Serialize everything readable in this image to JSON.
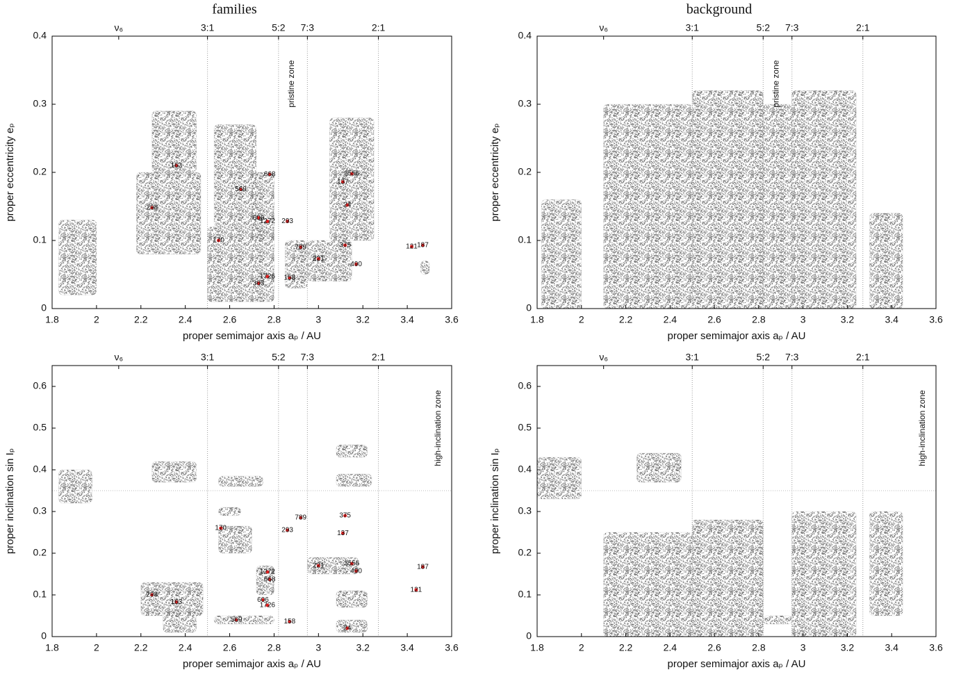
{
  "chart_data": [
    {
      "type": "scatter",
      "title": "families",
      "xlabel": "proper semimajor axis aₚ / AU",
      "ylabel": "proper eccentricity eₚ",
      "xlim": [
        1.8,
        3.6
      ],
      "xticks": [
        1.8,
        2,
        2.2,
        2.4,
        2.6,
        2.8,
        3,
        3.2,
        3.4,
        3.6
      ],
      "ylim": [
        0,
        0.4
      ],
      "yticks": [
        0,
        0.1,
        0.2,
        0.3,
        0.4
      ],
      "x2ticks": [
        {
          "value": 2.1,
          "label": "ν₆"
        },
        {
          "value": 2.5,
          "label": "3:1"
        },
        {
          "value": 2.82,
          "label": "5:2"
        },
        {
          "value": 2.95,
          "label": "7:3"
        },
        {
          "value": 3.27,
          "label": "2:1"
        }
      ],
      "vlines": [
        2.5,
        2.82,
        2.95,
        3.27
      ],
      "hlines": [],
      "point_color": "#808080",
      "family_color": "#e02020",
      "annotations": [
        {
          "text": "pristine zone",
          "x": 2.88,
          "y": 0.33
        }
      ],
      "clouds": [
        {
          "x": [
            1.83,
            2.0
          ],
          "y": [
            0.02,
            0.13
          ]
        },
        {
          "x": [
            2.18,
            2.47
          ],
          "y": [
            0.08,
            0.2
          ]
        },
        {
          "x": [
            2.25,
            2.45
          ],
          "y": [
            0.2,
            0.29
          ]
        },
        {
          "x": [
            2.53,
            2.72
          ],
          "y": [
            0.12,
            0.27
          ]
        },
        {
          "x": [
            2.5,
            2.8
          ],
          "y": [
            0.01,
            0.12
          ]
        },
        {
          "x": [
            2.7,
            2.8
          ],
          "y": [
            0.1,
            0.2
          ]
        },
        {
          "x": [
            2.85,
            2.95
          ],
          "y": [
            0.03,
            0.1
          ]
        },
        {
          "x": [
            2.95,
            3.15
          ],
          "y": [
            0.04,
            0.1
          ]
        },
        {
          "x": [
            3.05,
            3.25
          ],
          "y": [
            0.1,
            0.28
          ]
        },
        {
          "x": [
            3.46,
            3.5
          ],
          "y": [
            0.05,
            0.07
          ]
        }
      ],
      "families": [
        {
          "label": "163",
          "x": 2.36,
          "y": 0.21
        },
        {
          "label": "298",
          "x": 2.25,
          "y": 0.148
        },
        {
          "label": "569",
          "x": 2.65,
          "y": 0.175
        },
        {
          "label": "170",
          "x": 2.55,
          "y": 0.1
        },
        {
          "label": "668",
          "x": 2.78,
          "y": 0.197
        },
        {
          "label": "606",
          "x": 2.73,
          "y": 0.133
        },
        {
          "label": "1272",
          "x": 2.77,
          "y": 0.128
        },
        {
          "label": "293",
          "x": 2.86,
          "y": 0.128
        },
        {
          "label": "789",
          "x": 2.92,
          "y": 0.09
        },
        {
          "label": "221",
          "x": 3.0,
          "y": 0.073
        },
        {
          "label": "375",
          "x": 3.12,
          "y": 0.093
        },
        {
          "label": "490",
          "x": 3.17,
          "y": 0.065
        },
        {
          "label": "24",
          "x": 3.13,
          "y": 0.152
        },
        {
          "label": "137",
          "x": 3.11,
          "y": 0.186
        },
        {
          "label": "3556",
          "x": 3.15,
          "y": 0.198
        },
        {
          "label": "1726",
          "x": 2.77,
          "y": 0.047
        },
        {
          "label": "363",
          "x": 2.73,
          "y": 0.037
        },
        {
          "label": "158",
          "x": 2.87,
          "y": 0.045
        },
        {
          "label": "121",
          "x": 3.42,
          "y": 0.091
        },
        {
          "label": "187",
          "x": 3.47,
          "y": 0.093
        }
      ]
    },
    {
      "type": "scatter",
      "title": "background",
      "xlabel": "proper semimajor axis aₚ / AU",
      "ylabel": "proper eccentricity eₚ",
      "xlim": [
        1.8,
        3.6
      ],
      "xticks": [
        1.8,
        2,
        2.2,
        2.4,
        2.6,
        2.8,
        3,
        3.2,
        3.4,
        3.6
      ],
      "ylim": [
        0,
        0.4
      ],
      "yticks": [
        0,
        0.1,
        0.2,
        0.3,
        0.4
      ],
      "x2ticks": [
        {
          "value": 2.1,
          "label": "ν₆"
        },
        {
          "value": 2.5,
          "label": "3:1"
        },
        {
          "value": 2.82,
          "label": "5:2"
        },
        {
          "value": 2.95,
          "label": "7:3"
        },
        {
          "value": 3.27,
          "label": "2:1"
        }
      ],
      "vlines": [
        2.5,
        2.82,
        2.95,
        3.27
      ],
      "hlines": [],
      "point_color": "#808080",
      "annotations": [
        {
          "text": "pristine zone",
          "x": 2.88,
          "y": 0.33
        }
      ],
      "clouds": [
        {
          "x": [
            1.82,
            2.0
          ],
          "y": [
            0.0,
            0.16
          ]
        },
        {
          "x": [
            2.1,
            2.5
          ],
          "y": [
            0.0,
            0.3
          ]
        },
        {
          "x": [
            2.5,
            2.82
          ],
          "y": [
            0.0,
            0.32
          ]
        },
        {
          "x": [
            2.82,
            2.95
          ],
          "y": [
            0.0,
            0.3
          ]
        },
        {
          "x": [
            2.95,
            3.24
          ],
          "y": [
            0.0,
            0.32
          ]
        },
        {
          "x": [
            3.3,
            3.45
          ],
          "y": [
            0.0,
            0.14
          ]
        }
      ],
      "families": []
    },
    {
      "type": "scatter",
      "xlabel": "proper semimajor axis aₚ / AU",
      "ylabel": "proper inclination sin Iₚ",
      "xlim": [
        1.8,
        3.6
      ],
      "xticks": [
        1.8,
        2,
        2.2,
        2.4,
        2.6,
        2.8,
        3,
        3.2,
        3.4,
        3.6
      ],
      "ylim": [
        0,
        0.65
      ],
      "yticks": [
        0,
        0.1,
        0.2,
        0.3,
        0.4,
        0.5,
        0.6
      ],
      "x2ticks": [
        {
          "value": 2.1,
          "label": "ν₆"
        },
        {
          "value": 2.5,
          "label": "3:1"
        },
        {
          "value": 2.82,
          "label": "5:2"
        },
        {
          "value": 2.95,
          "label": "7:3"
        },
        {
          "value": 3.27,
          "label": "2:1"
        }
      ],
      "vlines": [
        2.5,
        2.82,
        2.95,
        3.27
      ],
      "hlines": [
        0.35
      ],
      "point_color": "#808080",
      "family_color": "#e02020",
      "annotations": [
        {
          "text": "high-inclination zone",
          "x": 3.54,
          "y": 0.5
        }
      ],
      "clouds": [
        {
          "x": [
            1.83,
            1.98
          ],
          "y": [
            0.32,
            0.4
          ]
        },
        {
          "x": [
            2.25,
            2.45
          ],
          "y": [
            0.37,
            0.42
          ]
        },
        {
          "x": [
            2.2,
            2.48
          ],
          "y": [
            0.05,
            0.13
          ]
        },
        {
          "x": [
            2.3,
            2.45
          ],
          "y": [
            0.01,
            0.06
          ]
        },
        {
          "x": [
            2.55,
            2.75
          ],
          "y": [
            0.36,
            0.385
          ]
        },
        {
          "x": [
            2.55,
            2.7
          ],
          "y": [
            0.2,
            0.265
          ]
        },
        {
          "x": [
            2.55,
            2.65
          ],
          "y": [
            0.29,
            0.31
          ]
        },
        {
          "x": [
            3.08,
            3.22
          ],
          "y": [
            0.43,
            0.46
          ]
        },
        {
          "x": [
            3.08,
            3.24
          ],
          "y": [
            0.36,
            0.39
          ]
        },
        {
          "x": [
            3.08,
            3.22
          ],
          "y": [
            0.07,
            0.11
          ]
        },
        {
          "x": [
            3.08,
            3.22
          ],
          "y": [
            0.01,
            0.04
          ]
        },
        {
          "x": [
            2.95,
            3.18
          ],
          "y": [
            0.15,
            0.19
          ]
        },
        {
          "x": [
            2.53,
            2.8
          ],
          "y": [
            0.03,
            0.05
          ]
        },
        {
          "x": [
            2.72,
            2.8
          ],
          "y": [
            0.1,
            0.17
          ]
        }
      ],
      "families": [
        {
          "label": "298",
          "x": 2.25,
          "y": 0.1
        },
        {
          "label": "163",
          "x": 2.36,
          "y": 0.083
        },
        {
          "label": "170",
          "x": 2.56,
          "y": 0.26
        },
        {
          "label": "293",
          "x": 2.86,
          "y": 0.255
        },
        {
          "label": "789",
          "x": 2.92,
          "y": 0.285
        },
        {
          "label": "375",
          "x": 3.12,
          "y": 0.29
        },
        {
          "label": "137",
          "x": 3.11,
          "y": 0.248
        },
        {
          "label": "1272",
          "x": 2.77,
          "y": 0.155
        },
        {
          "label": "668",
          "x": 2.78,
          "y": 0.137
        },
        {
          "label": "221",
          "x": 3.0,
          "y": 0.17
        },
        {
          "label": "3556",
          "x": 3.15,
          "y": 0.175
        },
        {
          "label": "490",
          "x": 3.17,
          "y": 0.157
        },
        {
          "label": "606",
          "x": 2.75,
          "y": 0.088
        },
        {
          "label": "1726",
          "x": 2.77,
          "y": 0.075
        },
        {
          "label": "569",
          "x": 2.63,
          "y": 0.04
        },
        {
          "label": "158",
          "x": 2.87,
          "y": 0.036
        },
        {
          "label": "24",
          "x": 3.13,
          "y": 0.02
        },
        {
          "label": "121",
          "x": 3.44,
          "y": 0.112
        },
        {
          "label": "187",
          "x": 3.47,
          "y": 0.167
        }
      ]
    },
    {
      "type": "scatter",
      "xlabel": "proper semimajor axis aₚ / AU",
      "ylabel": "proper inclination sin Iₚ",
      "xlim": [
        1.8,
        3.6
      ],
      "xticks": [
        1.8,
        2,
        2.2,
        2.4,
        2.6,
        2.8,
        3,
        3.2,
        3.4,
        3.6
      ],
      "ylim": [
        0,
        0.65
      ],
      "yticks": [
        0,
        0.1,
        0.2,
        0.3,
        0.4,
        0.5,
        0.6
      ],
      "x2ticks": [
        {
          "value": 2.1,
          "label": "ν₆"
        },
        {
          "value": 2.5,
          "label": "3:1"
        },
        {
          "value": 2.82,
          "label": "5:2"
        },
        {
          "value": 2.95,
          "label": "7:3"
        },
        {
          "value": 3.27,
          "label": "2:1"
        }
      ],
      "vlines": [
        2.5,
        2.82,
        2.95,
        3.27
      ],
      "hlines": [
        0.35
      ],
      "point_color": "#808080",
      "annotations": [
        {
          "text": "high-inclination zone",
          "x": 3.54,
          "y": 0.5
        }
      ],
      "clouds": [
        {
          "x": [
            2.1,
            2.5
          ],
          "y": [
            0.0,
            0.25
          ]
        },
        {
          "x": [
            2.5,
            2.82
          ],
          "y": [
            0.0,
            0.28
          ]
        },
        {
          "x": [
            2.95,
            3.24
          ],
          "y": [
            0.0,
            0.3
          ]
        },
        {
          "x": [
            1.8,
            2.0
          ],
          "y": [
            0.33,
            0.43
          ]
        },
        {
          "x": [
            2.25,
            2.45
          ],
          "y": [
            0.37,
            0.44
          ]
        },
        {
          "x": [
            2.82,
            2.95
          ],
          "y": [
            0.03,
            0.05
          ]
        },
        {
          "x": [
            3.3,
            3.45
          ],
          "y": [
            0.05,
            0.3
          ]
        }
      ],
      "families": []
    }
  ]
}
